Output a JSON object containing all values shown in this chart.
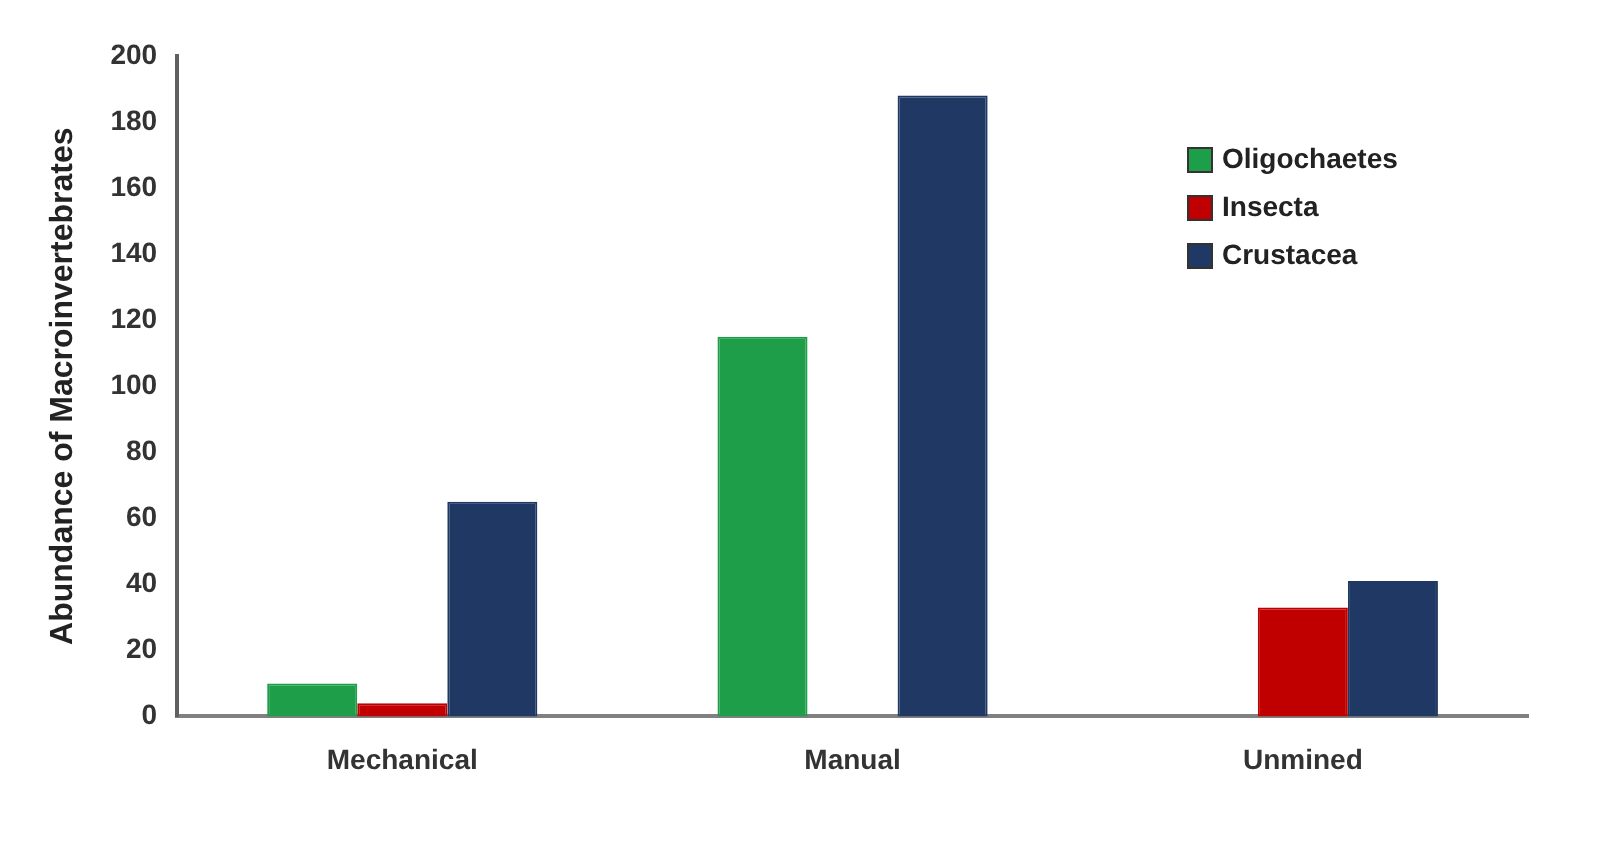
{
  "chart_data": {
    "type": "bar",
    "ylabel": "Abundance of Macroinvertebrates",
    "categories": [
      "Mechanical",
      "Manual",
      "Unmined"
    ],
    "series": [
      {
        "name": "Oligochaetes",
        "color": "#1e9e48",
        "values": [
          10,
          115,
          0
        ]
      },
      {
        "name": "Insecta",
        "color": "#c00000",
        "values": [
          4,
          0,
          33
        ]
      },
      {
        "name": "Crustacea",
        "color": "#1f3864",
        "values": [
          65,
          188,
          41
        ]
      }
    ],
    "ylim": [
      0,
      200
    ],
    "yticks": [
      0,
      20,
      40,
      60,
      80,
      100,
      120,
      140,
      160,
      180,
      200
    ],
    "grid": false,
    "legend": "top right"
  }
}
